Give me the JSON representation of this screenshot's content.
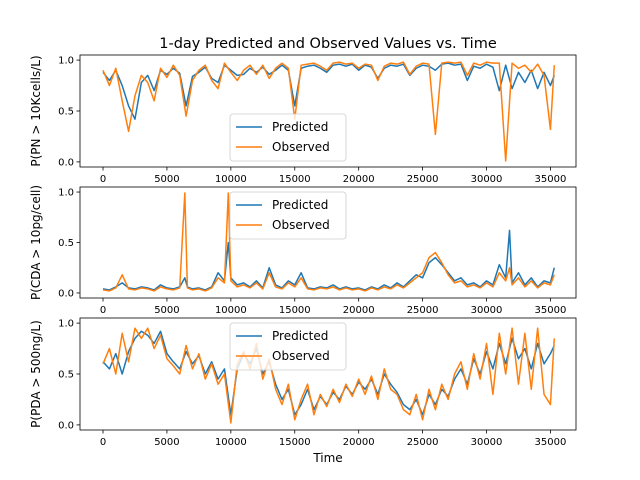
{
  "chart_data": [
    {
      "type": "line",
      "title": "1-day Predicted and Observed Values vs. Time",
      "xlabel": "",
      "ylabel": "P(PN > 10Kcells/L)",
      "xlim": [
        -1800,
        37000
      ],
      "ylim": [
        -0.05,
        1.05
      ],
      "xticks": [
        0,
        5000,
        10000,
        15000,
        20000,
        25000,
        30000,
        35000
      ],
      "yticks": [
        0.0,
        0.5,
        1.0
      ],
      "ytick_labels": [
        "0.0",
        "0.5",
        "1.0"
      ],
      "legend_position": "lower center",
      "series": [
        {
          "name": "Predicted",
          "color": "#1f77b4",
          "x": [
            0,
            500,
            1000,
            1500,
            2000,
            2500,
            3000,
            3500,
            4000,
            4500,
            5000,
            5500,
            6000,
            6500,
            7000,
            7500,
            8000,
            8500,
            9000,
            9500,
            10000,
            10500,
            11000,
            11500,
            12000,
            12500,
            13000,
            13500,
            14000,
            14500,
            15000,
            15500,
            16000,
            16500,
            17000,
            17500,
            18000,
            18500,
            19000,
            19500,
            20000,
            20500,
            21000,
            21500,
            22000,
            22500,
            23000,
            23500,
            24000,
            24500,
            25000,
            25500,
            26000,
            26500,
            27000,
            27500,
            28000,
            28500,
            29000,
            29500,
            30000,
            30500,
            31000,
            31500,
            32000,
            32500,
            33000,
            33500,
            34000,
            34500,
            35000,
            35300
          ],
          "values": [
            0.88,
            0.8,
            0.9,
            0.75,
            0.55,
            0.42,
            0.78,
            0.85,
            0.7,
            0.9,
            0.86,
            0.92,
            0.87,
            0.55,
            0.84,
            0.88,
            0.93,
            0.82,
            0.78,
            0.95,
            0.9,
            0.85,
            0.86,
            0.92,
            0.88,
            0.93,
            0.86,
            0.9,
            0.95,
            0.9,
            0.55,
            0.92,
            0.94,
            0.95,
            0.92,
            0.88,
            0.95,
            0.96,
            0.94,
            0.96,
            0.9,
            0.95,
            0.93,
            0.82,
            0.92,
            0.95,
            0.94,
            0.96,
            0.85,
            0.92,
            0.95,
            0.94,
            0.9,
            0.96,
            0.97,
            0.95,
            0.96,
            0.8,
            0.94,
            0.92,
            0.96,
            0.93,
            0.7,
            0.95,
            0.72,
            0.88,
            0.78,
            0.9,
            0.72,
            0.88,
            0.75,
            0.85
          ]
        },
        {
          "name": "Observed",
          "color": "#ff7f0e",
          "x": [
            0,
            500,
            1000,
            1500,
            2000,
            2500,
            3000,
            3500,
            4000,
            4500,
            5000,
            5500,
            6000,
            6500,
            7000,
            7500,
            8000,
            8500,
            9000,
            9500,
            10000,
            10500,
            11000,
            11500,
            12000,
            12500,
            13000,
            13500,
            14000,
            14500,
            15000,
            15500,
            16000,
            16500,
            17000,
            17500,
            18000,
            18500,
            19000,
            19500,
            20000,
            20500,
            21000,
            21500,
            22000,
            22500,
            23000,
            23500,
            24000,
            24500,
            25000,
            25500,
            26000,
            26500,
            27000,
            27500,
            28000,
            28500,
            29000,
            29500,
            30000,
            30500,
            31000,
            31500,
            32000,
            32500,
            33000,
            33500,
            34000,
            34500,
            35000,
            35300
          ],
          "values": [
            0.9,
            0.75,
            0.92,
            0.6,
            0.3,
            0.65,
            0.85,
            0.78,
            0.6,
            0.92,
            0.83,
            0.95,
            0.85,
            0.45,
            0.8,
            0.9,
            0.95,
            0.8,
            0.72,
            0.97,
            0.88,
            0.8,
            0.9,
            0.95,
            0.86,
            0.95,
            0.82,
            0.92,
            0.97,
            0.92,
            0.42,
            0.95,
            0.96,
            0.97,
            0.94,
            0.9,
            0.97,
            0.98,
            0.96,
            0.97,
            0.92,
            0.96,
            0.95,
            0.8,
            0.94,
            0.97,
            0.96,
            0.98,
            0.86,
            0.94,
            0.97,
            0.96,
            0.27,
            0.97,
            0.98,
            0.97,
            0.98,
            0.85,
            0.97,
            0.95,
            0.98,
            0.97,
            0.97,
            0.01,
            0.97,
            0.92,
            0.95,
            0.88,
            0.96,
            0.85,
            0.32,
            0.95
          ]
        }
      ]
    },
    {
      "type": "line",
      "title": "",
      "xlabel": "",
      "ylabel": "P(CDA > 10pg/cell)",
      "xlim": [
        -1800,
        37000
      ],
      "ylim": [
        -0.05,
        1.05
      ],
      "xticks": [
        0,
        5000,
        10000,
        15000,
        20000,
        25000,
        30000,
        35000
      ],
      "yticks": [
        0.0,
        0.5,
        1.0
      ],
      "ytick_labels": [
        "0.0",
        "0.5",
        "1.0"
      ],
      "legend_position": "upper center",
      "series": [
        {
          "name": "Predicted",
          "color": "#1f77b4",
          "x": [
            0,
            500,
            1000,
            1500,
            2000,
            2500,
            3000,
            3500,
            4000,
            4500,
            5000,
            5500,
            6000,
            6400,
            6600,
            7000,
            7500,
            8000,
            8500,
            9000,
            9500,
            9800,
            10000,
            10500,
            11000,
            11500,
            12000,
            12500,
            13000,
            13500,
            14000,
            14500,
            15000,
            15500,
            16000,
            16500,
            17000,
            17500,
            18000,
            18500,
            19000,
            19500,
            20000,
            20500,
            21000,
            21500,
            22000,
            22500,
            23000,
            23500,
            24000,
            24500,
            25000,
            25500,
            26000,
            26500,
            27000,
            27500,
            28000,
            28500,
            29000,
            29500,
            30000,
            30500,
            31000,
            31500,
            31800,
            32000,
            32500,
            33000,
            33500,
            34000,
            34500,
            35000,
            35300
          ],
          "values": [
            0.04,
            0.03,
            0.06,
            0.1,
            0.05,
            0.04,
            0.06,
            0.05,
            0.03,
            0.08,
            0.05,
            0.04,
            0.06,
            0.15,
            0.06,
            0.04,
            0.05,
            0.03,
            0.06,
            0.2,
            0.12,
            0.5,
            0.15,
            0.08,
            0.1,
            0.06,
            0.12,
            0.05,
            0.25,
            0.08,
            0.05,
            0.12,
            0.08,
            0.2,
            0.05,
            0.04,
            0.06,
            0.05,
            0.08,
            0.04,
            0.06,
            0.04,
            0.05,
            0.03,
            0.06,
            0.04,
            0.08,
            0.05,
            0.1,
            0.06,
            0.12,
            0.18,
            0.15,
            0.3,
            0.35,
            0.28,
            0.2,
            0.12,
            0.15,
            0.08,
            0.1,
            0.06,
            0.12,
            0.08,
            0.28,
            0.15,
            0.62,
            0.1,
            0.2,
            0.08,
            0.15,
            0.06,
            0.12,
            0.1,
            0.25
          ]
        },
        {
          "name": "Observed",
          "color": "#ff7f0e",
          "x": [
            0,
            500,
            1000,
            1500,
            2000,
            2500,
            3000,
            3500,
            4000,
            4500,
            5000,
            5500,
            6000,
            6400,
            6600,
            7000,
            7500,
            8000,
            8500,
            9000,
            9500,
            9800,
            10000,
            10500,
            11000,
            11500,
            12000,
            12500,
            13000,
            13500,
            14000,
            14500,
            15000,
            15500,
            16000,
            16500,
            17000,
            17500,
            18000,
            18500,
            19000,
            19500,
            20000,
            20500,
            21000,
            21500,
            22000,
            22500,
            23000,
            23500,
            24000,
            24500,
            25000,
            25500,
            26000,
            26500,
            27000,
            27500,
            28000,
            28500,
            29000,
            29500,
            30000,
            30500,
            31000,
            31500,
            31800,
            32000,
            32500,
            33000,
            33500,
            34000,
            34500,
            35000,
            35300
          ],
          "values": [
            0.03,
            0.02,
            0.05,
            0.18,
            0.04,
            0.03,
            0.05,
            0.04,
            0.02,
            0.06,
            0.04,
            0.03,
            0.05,
            0.99,
            0.05,
            0.03,
            0.04,
            0.02,
            0.05,
            0.15,
            0.1,
            0.99,
            0.12,
            0.06,
            0.08,
            0.05,
            0.1,
            0.04,
            0.2,
            0.06,
            0.04,
            0.1,
            0.06,
            0.15,
            0.04,
            0.03,
            0.05,
            0.04,
            0.06,
            0.03,
            0.05,
            0.03,
            0.04,
            0.02,
            0.05,
            0.03,
            0.06,
            0.04,
            0.08,
            0.05,
            0.1,
            0.15,
            0.2,
            0.35,
            0.4,
            0.3,
            0.18,
            0.1,
            0.12,
            0.06,
            0.08,
            0.05,
            0.1,
            0.06,
            0.2,
            0.12,
            0.25,
            0.08,
            0.15,
            0.06,
            0.12,
            0.05,
            0.1,
            0.08,
            0.18
          ]
        }
      ]
    },
    {
      "type": "line",
      "title": "",
      "xlabel": "Time",
      "ylabel": "P(PDA > 500ng/L)",
      "xlim": [
        -1800,
        37000
      ],
      "ylim": [
        -0.05,
        1.05
      ],
      "xticks": [
        0,
        5000,
        10000,
        15000,
        20000,
        25000,
        30000,
        35000
      ],
      "yticks": [
        0.0,
        0.5,
        1.0
      ],
      "ytick_labels": [
        "0.0",
        "0.5",
        "1.0"
      ],
      "legend_position": "upper center",
      "series": [
        {
          "name": "Predicted",
          "color": "#1f77b4",
          "x": [
            0,
            500,
            1000,
            1500,
            2000,
            2500,
            3000,
            3500,
            4000,
            4500,
            5000,
            5500,
            6000,
            6500,
            7000,
            7500,
            8000,
            8500,
            9000,
            9500,
            10000,
            10500,
            11000,
            11500,
            12000,
            12500,
            13000,
            13500,
            14000,
            14500,
            15000,
            15500,
            16000,
            16500,
            17000,
            17500,
            18000,
            18500,
            19000,
            19500,
            20000,
            20500,
            21000,
            21500,
            22000,
            22500,
            23000,
            23500,
            24000,
            24500,
            25000,
            25500,
            26000,
            26500,
            27000,
            27500,
            28000,
            28500,
            29000,
            29500,
            30000,
            30500,
            31000,
            31500,
            32000,
            32500,
            33000,
            33500,
            34000,
            34500,
            35000,
            35300
          ],
          "values": [
            0.62,
            0.55,
            0.7,
            0.5,
            0.72,
            0.85,
            0.92,
            0.88,
            0.8,
            0.92,
            0.7,
            0.62,
            0.55,
            0.72,
            0.6,
            0.68,
            0.5,
            0.62,
            0.45,
            0.55,
            0.1,
            0.55,
            0.7,
            0.6,
            0.75,
            0.5,
            0.62,
            0.4,
            0.25,
            0.35,
            0.1,
            0.2,
            0.35,
            0.15,
            0.28,
            0.2,
            0.32,
            0.25,
            0.38,
            0.3,
            0.42,
            0.35,
            0.45,
            0.3,
            0.5,
            0.4,
            0.32,
            0.2,
            0.15,
            0.25,
            0.1,
            0.3,
            0.2,
            0.35,
            0.28,
            0.45,
            0.55,
            0.4,
            0.65,
            0.5,
            0.72,
            0.55,
            0.8,
            0.6,
            0.85,
            0.65,
            0.75,
            0.55,
            0.8,
            0.6,
            0.7,
            0.78
          ]
        },
        {
          "name": "Observed",
          "color": "#ff7f0e",
          "x": [
            0,
            500,
            1000,
            1500,
            2000,
            2500,
            3000,
            3500,
            4000,
            4500,
            5000,
            5500,
            6000,
            6500,
            7000,
            7500,
            8000,
            8500,
            9000,
            9500,
            10000,
            10500,
            11000,
            11500,
            12000,
            12500,
            13000,
            13500,
            14000,
            14500,
            15000,
            15500,
            16000,
            16500,
            17000,
            17500,
            18000,
            18500,
            19000,
            19500,
            20000,
            20500,
            21000,
            21500,
            22000,
            22500,
            23000,
            23500,
            24000,
            24500,
            25000,
            25500,
            26000,
            26500,
            27000,
            27500,
            28000,
            28500,
            29000,
            29500,
            30000,
            30500,
            31000,
            31500,
            32000,
            32500,
            33000,
            33500,
            34000,
            34500,
            35000,
            35300
          ],
          "values": [
            0.6,
            0.75,
            0.5,
            0.9,
            0.62,
            0.95,
            0.85,
            0.95,
            0.75,
            0.88,
            0.65,
            0.58,
            0.5,
            0.78,
            0.55,
            0.7,
            0.45,
            0.6,
            0.4,
            0.5,
            0.02,
            0.6,
            0.72,
            0.55,
            0.8,
            0.45,
            0.65,
            0.35,
            0.2,
            0.4,
            0.05,
            0.25,
            0.4,
            0.1,
            0.3,
            0.18,
            0.35,
            0.22,
            0.4,
            0.28,
            0.45,
            0.3,
            0.48,
            0.25,
            0.55,
            0.35,
            0.3,
            0.15,
            0.1,
            0.3,
            0.05,
            0.35,
            0.15,
            0.4,
            0.25,
            0.5,
            0.62,
            0.35,
            0.7,
            0.45,
            0.8,
            0.3,
            0.9,
            0.5,
            0.95,
            0.4,
            0.9,
            0.35,
            0.95,
            0.3,
            0.2,
            0.85
          ]
        }
      ]
    }
  ]
}
